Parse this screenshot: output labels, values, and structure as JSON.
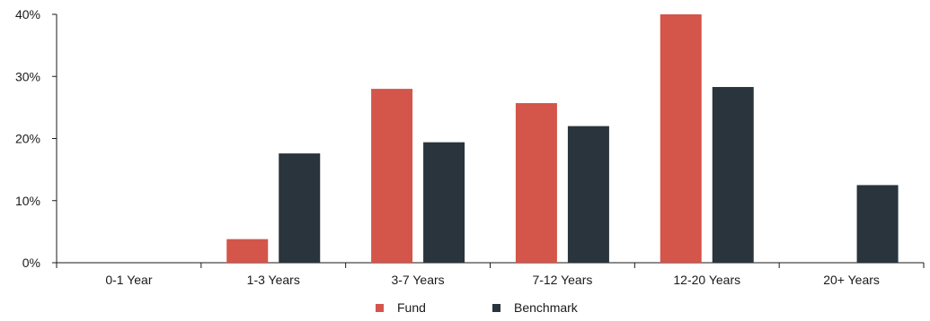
{
  "chart_data": {
    "type": "bar",
    "categories": [
      "0-1 Year",
      "1-3 Years",
      "3-7 Years",
      "7-12 Years",
      "12-20 Years",
      "20+ Years"
    ],
    "series": [
      {
        "name": "Fund",
        "color": "#d4554a",
        "values": [
          0,
          3.8,
          28.0,
          25.7,
          40.0,
          0
        ]
      },
      {
        "name": "Benchmark",
        "color": "#29343d",
        "values": [
          0,
          17.6,
          19.4,
          22.0,
          28.3,
          12.5
        ]
      }
    ],
    "yticks": [
      "0%",
      "10%",
      "20%",
      "30%",
      "40%"
    ],
    "ylim": [
      0,
      40
    ],
    "grid": false,
    "legend_position": "bottom-center"
  }
}
